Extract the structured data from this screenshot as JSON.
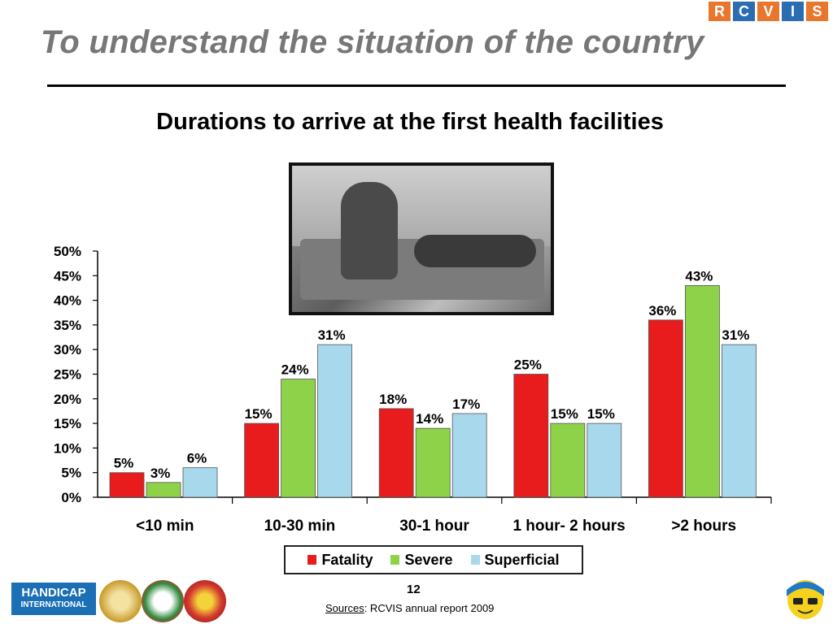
{
  "header": {
    "logo_letters": [
      "R",
      "C",
      "V",
      "I",
      "S"
    ],
    "logo_colors": [
      "#e8762d",
      "#2a6db0",
      "#e8762d",
      "#2a6db0",
      "#e8762d"
    ],
    "title": "To understand the situation of the country"
  },
  "chart_data": {
    "type": "bar",
    "title": "Durations to arrive at the first health facilities",
    "categories": [
      "<10 min",
      "10-30 min",
      "30-1 hour",
      "1 hour- 2 hours",
      ">2 hours"
    ],
    "series": [
      {
        "name": "Fatality",
        "values": [
          5,
          15,
          18,
          25,
          36
        ],
        "labels": [
          "5%",
          "15%",
          "18%",
          "25%",
          "36%"
        ],
        "color": "#e81c1c"
      },
      {
        "name": "Severe",
        "values": [
          3,
          24,
          14,
          15,
          43
        ],
        "labels": [
          "3%",
          "24%",
          "14%",
          "15%",
          "43%"
        ],
        "color": "#8ed24a"
      },
      {
        "name": "Superficial",
        "values": [
          6,
          31,
          17,
          15,
          31
        ],
        "labels": [
          "6%",
          "31%",
          "17%",
          "15%",
          "31%"
        ],
        "color": "#a8d8ec"
      }
    ],
    "y_ticks": [
      "0%",
      "5%",
      "10%",
      "15%",
      "20%",
      "25%",
      "30%",
      "35%",
      "40%",
      "45%",
      "50%"
    ],
    "ylim": [
      0,
      50
    ],
    "legend_position": "bottom",
    "grid": false
  },
  "legend": {
    "fatality": "Fatality",
    "severe": "Severe",
    "superficial": "Superficial"
  },
  "footer": {
    "page_number": "12",
    "sources_label": "Sources",
    "sources_text": ": RCVIS annual report 2009",
    "hi_logo_line1": "HANDICAP",
    "hi_logo_line2": "INTERNATIONAL"
  }
}
